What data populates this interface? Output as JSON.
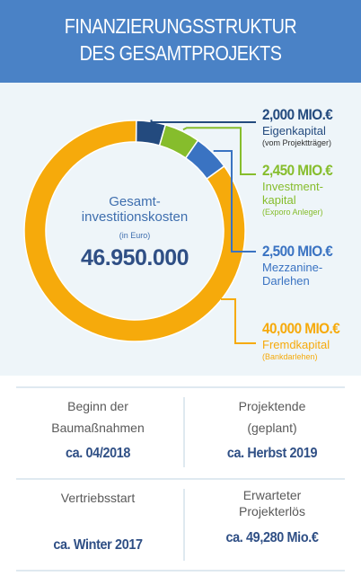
{
  "header": {
    "line1": "FINANZIERUNGSSTRUKTUR",
    "line2": "DES GESAMTPROJEKTS"
  },
  "center": {
    "line1": "Gesamt-",
    "line2": "investitionskosten",
    "unit": "(in Euro)",
    "total": "46.950.000"
  },
  "chart_data": {
    "type": "pie",
    "variant": "donut",
    "title": "FINANZIERUNGSSTRUKTUR DES GESAMTPROJEKTS",
    "categories": [
      "Eigenkapital",
      "Investmentkapital",
      "Mezzanine-Darlehen",
      "Fremdkapital"
    ],
    "values": [
      2000,
      2450,
      2500,
      40000
    ],
    "value_labels": [
      "2,000 MIO.€",
      "2,450 MIO.€",
      "2,500 MIO.€",
      "40,000 MIO.€"
    ],
    "colors": [
      "#234a7e",
      "#86bd2c",
      "#3a73c2",
      "#f6aa0b"
    ],
    "center_label": "Gesamt-investitionskosten (in Euro)",
    "center_value": "46.950.000"
  },
  "labels": [
    {
      "value": "2,000 MIO.€",
      "name1": "Eigenkapital",
      "name2": "",
      "sub": "(vom Projektträger)",
      "color": "#234a7e",
      "subcolor": "#2f2f2f"
    },
    {
      "value": "2,450 MIO.€",
      "name1": "Investment-",
      "name2": "kapital",
      "sub": "(Exporo Anleger)",
      "color": "#86bd2c",
      "subcolor": "#86bd2c"
    },
    {
      "value": "2,500 MIO.€",
      "name1": "Mezzanine-",
      "name2": "Darlehen",
      "sub": "",
      "color": "#3a73c2",
      "subcolor": "#3a73c2"
    },
    {
      "value": "40,000 MIO.€",
      "name1": "Fremdkapital",
      "name2": "",
      "sub": "(Bankdarlehen)",
      "color": "#f6aa0b",
      "subcolor": "#f6aa0b"
    }
  ],
  "facts": [
    {
      "label1": "Beginn der",
      "label2": "Baumaßnahmen",
      "value": "ca. 04/2018"
    },
    {
      "label1": "Projektende",
      "label2": "(geplant)",
      "value": "ca. Herbst 2019"
    },
    {
      "label1": "Vertriebsstart",
      "label2": "",
      "value": "ca. Winter 2017"
    },
    {
      "label1": "Erwarteter",
      "label2": "Projekterlös",
      "value": "ca. 49,280 Mio.€"
    }
  ]
}
